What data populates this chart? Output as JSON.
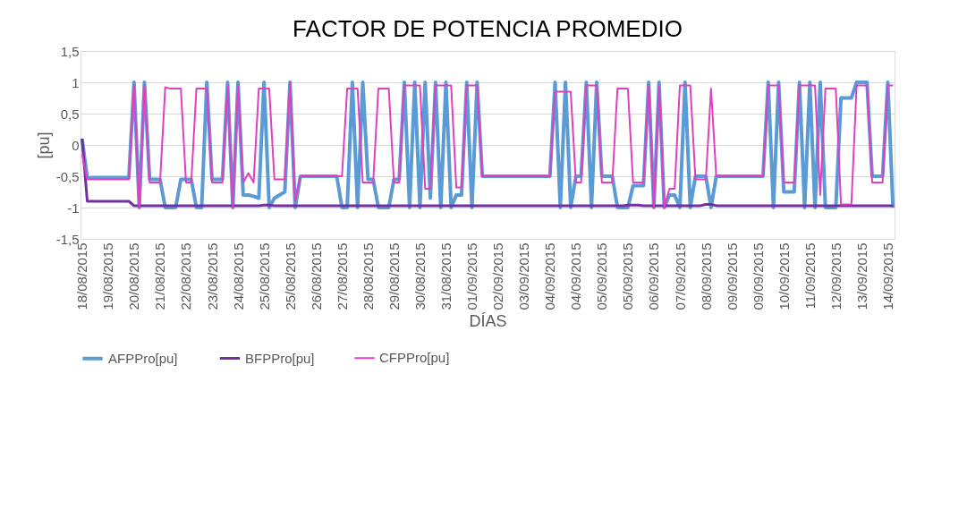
{
  "chart_data": {
    "type": "line",
    "title": "FACTOR DE POTENCIA PROMEDIO",
    "xlabel": "DÍAS",
    "ylabel": "[pu]",
    "categories": [
      "18/08/2015",
      null,
      null,
      null,
      null,
      "19/08/2015",
      null,
      null,
      null,
      null,
      "20/08/2015",
      null,
      null,
      null,
      null,
      "21/08/2015",
      null,
      null,
      null,
      null,
      "22/08/2015",
      null,
      null,
      null,
      null,
      "23/08/2015",
      null,
      null,
      null,
      null,
      "24/08/2015",
      null,
      null,
      null,
      null,
      "25/08/2015",
      null,
      null,
      null,
      null,
      "25/08/2015",
      null,
      null,
      null,
      null,
      "26/08/2015",
      null,
      null,
      null,
      null,
      "27/08/2015",
      null,
      null,
      null,
      null,
      "28/08/2015",
      null,
      null,
      null,
      null,
      "29/08/2015",
      null,
      null,
      null,
      null,
      "30/08/2015",
      null,
      null,
      null,
      null,
      "31/08/2015",
      null,
      null,
      null,
      null,
      "01/09/2015",
      null,
      null,
      null,
      null,
      "02/09/2015",
      null,
      null,
      null,
      null,
      "03/09/2015",
      null,
      null,
      null,
      null,
      "04/09/2015",
      null,
      null,
      null,
      null,
      "04/09/2015",
      null,
      null,
      null,
      null,
      "05/09/2015",
      null,
      null,
      null,
      null,
      "05/09/2015",
      null,
      null,
      null,
      null,
      "06/09/2015",
      null,
      null,
      null,
      null,
      "07/09/2015",
      null,
      null,
      null,
      null,
      "08/09/2015",
      null,
      null,
      null,
      null,
      "09/09/2015",
      null,
      null,
      null,
      null,
      "09/09/2015",
      null,
      null,
      null,
      null,
      "10/09/2015",
      null,
      null,
      null,
      null,
      "11/09/2015",
      null,
      null,
      null,
      null,
      "12/09/2015",
      null,
      null,
      null,
      null,
      "13/09/2015",
      null,
      null,
      null,
      null,
      "14/09/2015",
      null
    ],
    "ylim": [
      -1.5,
      1.5
    ],
    "yticks": [
      {
        "value": -1.5,
        "label": "-1,5"
      },
      {
        "value": -1,
        "label": "-1"
      },
      {
        "value": -0.5,
        "label": "-0,5"
      },
      {
        "value": 0,
        "label": "0"
      },
      {
        "value": 0.5,
        "label": "0,5"
      },
      {
        "value": 1,
        "label": "1"
      },
      {
        "value": 1.5,
        "label": "1,5"
      }
    ],
    "grid": "y",
    "legend": "bottom",
    "line_style": "solid",
    "series": [
      {
        "name": "AFPPro[pu]",
        "color": "#5b9bd5",
        "values": [
          0.1,
          -0.53,
          -0.52,
          -0.52,
          -0.52,
          -0.52,
          -0.52,
          -0.52,
          -0.52,
          -0.52,
          1,
          -1,
          1,
          -0.55,
          -0.55,
          -0.55,
          -1,
          -1,
          -1,
          -0.55,
          -0.55,
          -0.55,
          -1,
          -1,
          1,
          -0.55,
          -0.55,
          -0.55,
          1,
          -1,
          1,
          -0.8,
          -0.8,
          -0.82,
          -0.85,
          1,
          -1,
          -0.85,
          -0.8,
          -0.75,
          1,
          -1,
          -0.5,
          -0.5,
          -0.5,
          -0.5,
          -0.5,
          -0.5,
          -0.5,
          -0.5,
          -1,
          -1,
          1,
          -1,
          1,
          -0.55,
          -0.55,
          -1,
          -1,
          -1,
          -0.55,
          -0.55,
          1,
          -1,
          1,
          -1,
          1,
          -0.85,
          1,
          -1,
          1,
          -1,
          -0.8,
          -0.8,
          1,
          -1,
          1,
          -0.5,
          -0.5,
          -0.5,
          -0.5,
          -0.5,
          -0.5,
          -0.5,
          -0.5,
          -0.5,
          -0.5,
          -0.5,
          -0.5,
          -0.5,
          -0.5,
          1,
          -1,
          1,
          -1,
          -0.5,
          -0.5,
          1,
          -1,
          1,
          -0.5,
          -0.5,
          -0.5,
          -1,
          -1,
          -1,
          -0.65,
          -0.65,
          -0.65,
          1,
          -1,
          1,
          -1,
          -0.8,
          -0.8,
          -1,
          1,
          -1,
          -0.5,
          -0.5,
          -0.5,
          -1,
          -0.5,
          -0.5,
          -0.5,
          -0.5,
          -0.5,
          -0.5,
          -0.5,
          -0.5,
          -0.5,
          -0.5,
          1,
          -1,
          1,
          -0.75,
          -0.75,
          -0.75,
          1,
          -1,
          1,
          -1,
          1,
          -1,
          -1,
          -1,
          0.75,
          0.75,
          0.75,
          1,
          1,
          1,
          -0.5,
          -0.5,
          -0.5,
          1,
          -1
        ]
      },
      {
        "name": "BFPPro[pu]",
        "color": "#7030a0",
        "values": [
          0.1,
          -0.9,
          -0.9,
          -0.9,
          -0.9,
          -0.9,
          -0.9,
          -0.9,
          -0.9,
          -0.9,
          -0.97,
          -0.97,
          -0.97,
          -0.97,
          -0.97,
          -0.97,
          -0.97,
          -0.97,
          -0.97,
          -0.97,
          -0.97,
          -0.97,
          -0.97,
          -0.97,
          -0.97,
          -0.97,
          -0.97,
          -0.97,
          -0.97,
          -0.97,
          -0.97,
          -0.97,
          -0.97,
          -0.97,
          -0.97,
          -0.96,
          -0.96,
          -0.97,
          -0.97,
          -0.97,
          -0.97,
          -0.97,
          -0.97,
          -0.97,
          -0.97,
          -0.97,
          -0.97,
          -0.97,
          -0.97,
          -0.97,
          -0.97,
          -0.97,
          -0.97,
          -0.97,
          -0.97,
          -0.97,
          -0.97,
          -0.97,
          -0.97,
          -0.97,
          -0.97,
          -0.97,
          -0.97,
          -0.97,
          -0.97,
          -0.97,
          -0.97,
          -0.97,
          -0.97,
          -0.97,
          -0.97,
          -0.97,
          -0.97,
          -0.97,
          -0.97,
          -0.97,
          -0.97,
          -0.97,
          -0.97,
          -0.97,
          -0.97,
          -0.97,
          -0.97,
          -0.97,
          -0.97,
          -0.97,
          -0.97,
          -0.97,
          -0.97,
          -0.97,
          -0.97,
          -0.97,
          -0.97,
          -0.97,
          -0.97,
          -0.97,
          -0.97,
          -0.97,
          -0.97,
          -0.97,
          -0.97,
          -0.97,
          -0.97,
          -0.97,
          -0.97,
          -0.96,
          -0.96,
          -0.96,
          -0.97,
          -0.97,
          -0.97,
          -0.97,
          -0.97,
          -0.97,
          -0.97,
          -0.97,
          -0.97,
          -0.97,
          -0.97,
          -0.97,
          -0.95,
          -0.95,
          -0.97,
          -0.97,
          -0.97,
          -0.97,
          -0.97,
          -0.97,
          -0.97,
          -0.97,
          -0.97,
          -0.97,
          -0.97,
          -0.97,
          -0.97,
          -0.97,
          -0.97,
          -0.97,
          -0.97,
          -0.97,
          -0.97,
          -0.97,
          -0.97,
          -0.97,
          -0.97,
          -0.97,
          -0.97,
          -0.97,
          -0.97,
          -0.97,
          -0.97,
          -0.97,
          -0.97,
          -0.97,
          -0.97,
          -0.97,
          -0.97
        ]
      },
      {
        "name": "CFPPro[pu]",
        "color": "#e040c0",
        "values": [
          -0.15,
          -0.55,
          -0.55,
          -0.55,
          -0.55,
          -0.55,
          -0.55,
          -0.55,
          -0.55,
          -0.55,
          0.95,
          -1,
          0.95,
          -0.6,
          -0.6,
          -0.6,
          0.92,
          0.9,
          0.9,
          0.9,
          -0.6,
          -0.6,
          0.9,
          0.9,
          0.9,
          -0.6,
          -0.6,
          -0.6,
          0.95,
          -1,
          0.95,
          -0.6,
          -0.45,
          -0.6,
          0.9,
          0.9,
          0.9,
          -0.55,
          -0.55,
          -0.55,
          1,
          -0.9,
          -0.5,
          -0.5,
          -0.5,
          -0.5,
          -0.5,
          -0.5,
          -0.5,
          -0.5,
          -0.5,
          0.9,
          0.9,
          0.9,
          -0.6,
          -0.6,
          -0.6,
          0.9,
          0.9,
          0.9,
          -0.6,
          -0.6,
          0.95,
          0.95,
          0.95,
          0.95,
          -0.7,
          -0.7,
          0.95,
          0.95,
          0.95,
          0.95,
          -0.68,
          -0.68,
          0.95,
          0.95,
          0.95,
          -0.5,
          -0.5,
          -0.5,
          -0.5,
          -0.5,
          -0.5,
          -0.5,
          -0.5,
          -0.5,
          -0.5,
          -0.5,
          -0.5,
          -0.5,
          -0.5,
          0.85,
          0.85,
          0.85,
          0.85,
          -0.6,
          -0.6,
          0.95,
          0.95,
          0.95,
          -0.6,
          -0.6,
          -0.6,
          0.9,
          0.9,
          0.9,
          -0.6,
          -0.6,
          -0.6,
          0.95,
          -1,
          0.95,
          -1,
          -0.7,
          -0.7,
          0.95,
          0.95,
          0.95,
          -0.55,
          -0.55,
          -0.55,
          0.9,
          -0.5,
          -0.5,
          -0.5,
          -0.5,
          -0.5,
          -0.5,
          -0.5,
          -0.5,
          -0.5,
          -0.5,
          0.95,
          0.95,
          0.95,
          -0.6,
          -0.6,
          -0.6,
          0.95,
          0.95,
          0.95,
          0.95,
          -0.8,
          0.9,
          0.9,
          0.9,
          -0.95,
          -0.95,
          -0.95,
          0.95,
          0.95,
          0.95,
          -0.6,
          -0.6,
          -0.6,
          0.95,
          0.95
        ]
      }
    ]
  }
}
